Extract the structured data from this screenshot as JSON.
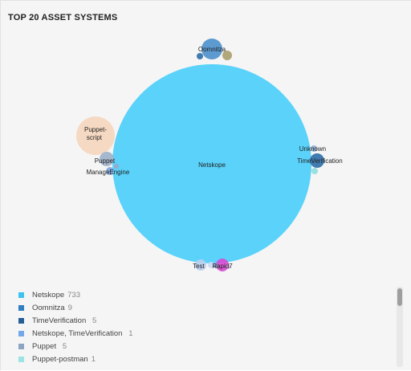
{
  "card": {
    "title": "TOP 20 ASSET SYSTEMS"
  },
  "chart_data": {
    "type": "bubble",
    "title": "TOP 20 ASSET SYSTEMS",
    "bubbles": [
      {
        "label": "Netskope",
        "value": 733,
        "color": "#5ad2fa"
      },
      {
        "label": "Oomnitza",
        "value": 9,
        "color": "#4b90cc"
      },
      {
        "label": "Puppet-script  ",
        "value": null,
        "color": "#f5cfb0"
      },
      {
        "label": "Puppet  ",
        "value": 5,
        "color": "#9db1c9"
      },
      {
        "label": "ManageEngine  ",
        "value": null,
        "color": "#7aa6e0"
      },
      {
        "label": "Unknown  ",
        "value": null,
        "color": "#8fb2d6"
      },
      {
        "label": "TimeVerification  ",
        "value": 5,
        "color": "#2e6fa8"
      },
      {
        "label": "Test  ",
        "value": null,
        "color": "#b9cfef"
      },
      {
        "label": "Rapid7",
        "value": null,
        "color": "#d94ad2"
      }
    ],
    "minor_bubbles": [
      {
        "color": "#a89f6e"
      },
      {
        "color": "#2e6fa8"
      },
      {
        "color": "#8fdede"
      },
      {
        "color": "#9aa6c8"
      },
      {
        "color": "#c9d9f3"
      },
      {
        "color": "#7e94c0"
      },
      {
        "color": "#d4a2e6"
      }
    ],
    "legend": [
      {
        "label": "Netskope",
        "count": "733",
        "color": "#3cc3ef"
      },
      {
        "label": "Oomnitza",
        "count": "9",
        "color": "#2f7fc1"
      },
      {
        "label": "TimeVerification  ",
        "count": "5",
        "color": "#255f96"
      },
      {
        "label": "Netskope, TimeVerification  ",
        "count": "1",
        "color": "#74a8ea"
      },
      {
        "label": "Puppet  ",
        "count": "5",
        "color": "#8da4c0"
      },
      {
        "label": "Puppet-postman",
        "count": "1",
        "color": "#9ee3e3"
      }
    ]
  }
}
